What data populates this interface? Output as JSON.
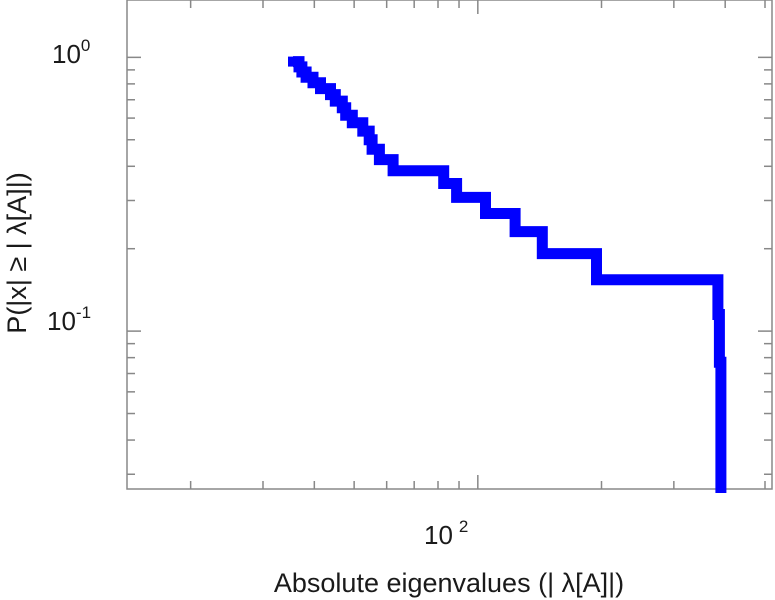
{
  "chart_data": {
    "type": "line",
    "title": "",
    "xlabel": "Absolute eigenvalues (| λ[A]|)",
    "ylabel": "P(|x| ≥ | λ[A]|)",
    "xscale": "log",
    "yscale": "log",
    "xlim": [
      14,
      520
    ],
    "ylim": [
      0.0265,
      1.62
    ],
    "grid": false,
    "legend": "none",
    "x_tick_labels": [
      {
        "base": "10",
        "exp": "2"
      }
    ],
    "y_tick_labels": [
      {
        "base": "10",
        "exp": "0"
      },
      {
        "base": "10",
        "exp": "-1"
      }
    ],
    "series": [
      {
        "color": "#0000ff",
        "style": "step",
        "x": [
          35.5,
          36.7,
          37.3,
          38.2,
          39.7,
          41.4,
          43.8,
          45.0,
          46.8,
          47.7,
          49.5,
          52.5,
          54.4,
          55.3,
          57.6,
          62.2,
          82.6,
          88.8,
          104.4,
          123.2,
          143.5,
          194.5,
          384.0,
          387.2,
          390.5
        ],
        "y": [
          0.965,
          0.923,
          0.884,
          0.846,
          0.808,
          0.769,
          0.731,
          0.692,
          0.654,
          0.615,
          0.577,
          0.538,
          0.5,
          0.462,
          0.423,
          0.385,
          0.346,
          0.308,
          0.269,
          0.231,
          0.192,
          0.154,
          0.115,
          0.077,
          0.03
        ]
      }
    ]
  }
}
